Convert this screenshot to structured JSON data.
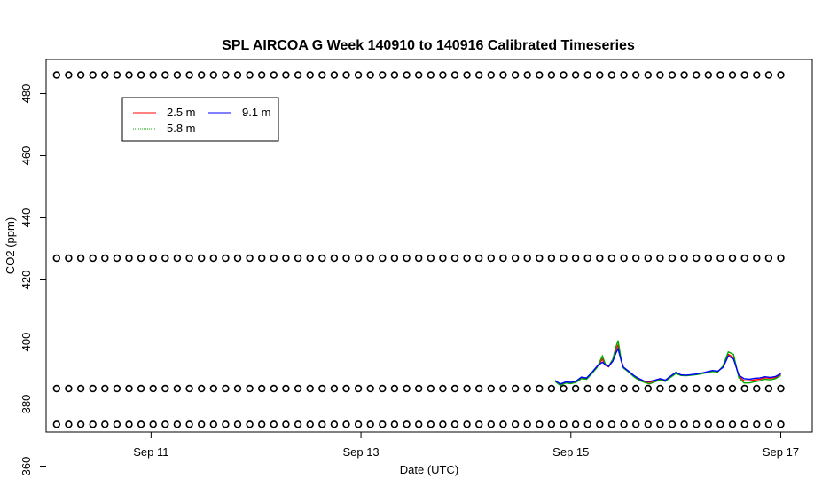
{
  "chart_data": {
    "type": "line",
    "title": "SPL AIRCOA G  Week 140910 to 140916  Calibrated Timeseries",
    "xlabel": "Date (UTC)",
    "ylabel": "CO2 (ppm)",
    "xlim": [
      0,
      7.3
    ],
    "ylim": [
      371,
      491
    ],
    "x_ticks": [
      {
        "value": 1,
        "label": "Sep 11"
      },
      {
        "value": 3,
        "label": "Sep 13"
      },
      {
        "value": 5,
        "label": "Sep 15"
      },
      {
        "value": 7,
        "label": "Sep 17"
      }
    ],
    "y_ticks": [
      360,
      380,
      400,
      420,
      440,
      460,
      480
    ],
    "legend": {
      "placement": "top-left",
      "entries": [
        {
          "name": "2.5 m",
          "color": "#ff0000"
        },
        {
          "name": "9.1 m",
          "color": "#0000ff"
        },
        {
          "name": "5.8 m",
          "color": "#00aa00"
        }
      ]
    },
    "reference_points": {
      "marker": "circle",
      "x_start": 0.1,
      "x_end": 7.0,
      "count": 61,
      "levels": [
        486,
        427,
        385,
        373.5
      ]
    },
    "x": [
      4.85,
      4.9,
      4.95,
      5.0,
      5.05,
      5.1,
      5.15,
      5.2,
      5.25,
      5.3,
      5.33,
      5.36,
      5.4,
      5.43,
      5.45,
      5.48,
      5.5,
      5.55,
      5.6,
      5.65,
      5.7,
      5.75,
      5.8,
      5.85,
      5.9,
      5.95,
      6.0,
      6.05,
      6.1,
      6.15,
      6.2,
      6.25,
      6.3,
      6.35,
      6.4,
      6.45,
      6.5,
      6.55,
      6.6,
      6.65,
      6.7,
      6.75,
      6.8,
      6.85,
      6.9,
      6.95,
      7.0
    ],
    "series": [
      {
        "name": "2.5 m",
        "color": "#ff0000",
        "values": [
          387.5,
          386.3,
          387.0,
          386.8,
          387.2,
          388.5,
          388.2,
          390.0,
          392.0,
          394.5,
          392.5,
          392.0,
          394.0,
          397.5,
          399.0,
          394.0,
          391.8,
          390.5,
          389.0,
          388.0,
          387.2,
          387.0,
          387.5,
          388.0,
          387.5,
          388.8,
          390.0,
          389.3,
          389.2,
          389.4,
          389.6,
          389.9,
          390.3,
          390.7,
          390.5,
          392.0,
          396.0,
          395.0,
          389.0,
          387.5,
          387.5,
          387.8,
          388.0,
          388.5,
          388.3,
          388.6,
          389.5
        ]
      },
      {
        "name": "5.8 m",
        "color": "#00aa00",
        "values": [
          387.3,
          386.0,
          386.8,
          386.6,
          387.0,
          388.2,
          388.0,
          389.8,
          391.8,
          395.5,
          392.8,
          392.2,
          394.5,
          398.5,
          400.5,
          394.2,
          391.6,
          390.3,
          388.8,
          387.7,
          387.0,
          386.5,
          387.2,
          387.8,
          387.3,
          388.6,
          389.8,
          389.2,
          389.1,
          389.3,
          389.5,
          389.8,
          390.1,
          390.5,
          390.3,
          392.3,
          396.8,
          396.0,
          388.5,
          386.8,
          386.8,
          387.2,
          387.5,
          388.0,
          387.8,
          388.2,
          389.2
        ]
      },
      {
        "name": "9.1 m",
        "color": "#0000ff",
        "values": [
          387.6,
          386.5,
          387.1,
          387.0,
          387.4,
          388.7,
          388.4,
          390.2,
          392.2,
          393.5,
          392.6,
          392.1,
          393.8,
          396.5,
          397.8,
          393.9,
          391.9,
          390.6,
          389.2,
          388.2,
          387.4,
          387.3,
          387.7,
          388.2,
          387.7,
          389.0,
          390.2,
          389.4,
          389.3,
          389.5,
          389.7,
          390.0,
          390.4,
          390.8,
          390.6,
          391.8,
          395.5,
          394.5,
          389.3,
          388.2,
          388.0,
          388.3,
          388.4,
          388.8,
          388.6,
          388.9,
          389.8
        ]
      }
    ]
  }
}
